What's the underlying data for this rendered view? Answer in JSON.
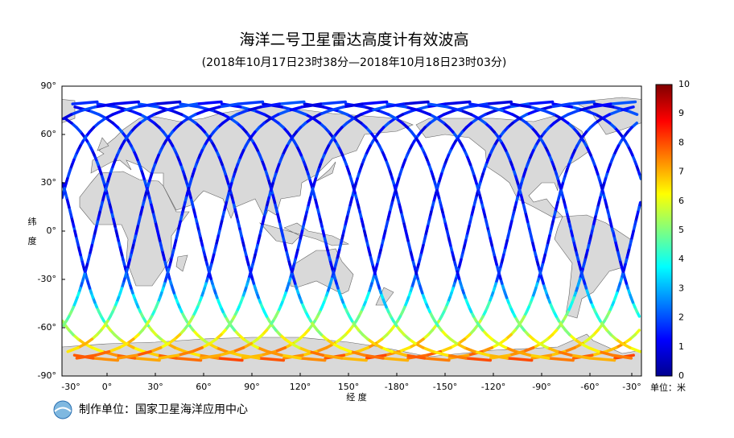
{
  "title": "海洋二号卫星雷达高度计有效波高",
  "subtitle": "(2018年10月17日23时38分—2018年10月18日23时03分)",
  "map": {
    "lon_labels": [
      "-30°",
      "0°",
      "30°",
      "60°",
      "90°",
      "120°",
      "150°",
      "-180°",
      "-150°",
      "-120°",
      "-90°",
      "-60°",
      "-30°"
    ],
    "lat_labels": [
      "90°",
      "60°",
      "30°",
      "0°",
      "-30°",
      "-60°",
      "-90°"
    ],
    "x_label": "经 度",
    "y_label": [
      "纬",
      "度"
    ]
  },
  "colorbar": {
    "range": [
      0,
      10
    ],
    "ticks": [
      0,
      1,
      2,
      3,
      4,
      5,
      6,
      7,
      8,
      9,
      10
    ],
    "unit": "单位：米"
  },
  "footer": "制作单位：国家卫星海洋应用中心"
}
